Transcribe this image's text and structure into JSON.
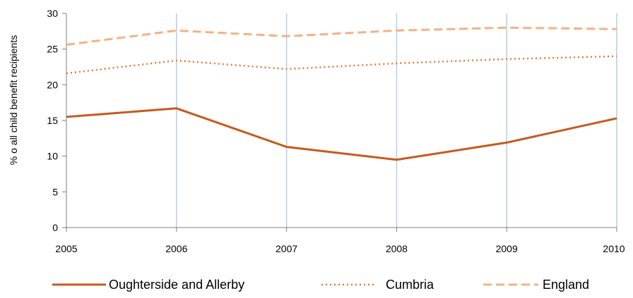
{
  "chart_data": {
    "type": "line",
    "x": [
      "2005",
      "2006",
      "2007",
      "2008",
      "2009",
      "2010"
    ],
    "ylabel": "% o all child benefit recipients",
    "ylim": [
      0,
      30
    ],
    "yticks": [
      0,
      5,
      10,
      15,
      20,
      25,
      30
    ],
    "grid": "vertical",
    "legend": "bottom",
    "series": [
      {
        "name": "Oughterside and Allerby",
        "values": [
          15.5,
          16.7,
          11.3,
          9.5,
          11.9,
          15.3
        ],
        "color": "#c55a1e",
        "style": "solid"
      },
      {
        "name": "Cumbria",
        "values": [
          21.6,
          23.4,
          22.2,
          23.0,
          23.6,
          24.0
        ],
        "color": "#e07a30",
        "style": "dotted"
      },
      {
        "name": "England",
        "values": [
          25.6,
          27.6,
          26.8,
          27.6,
          28.0,
          27.8
        ],
        "color": "#f4b183",
        "style": "dashed"
      }
    ]
  }
}
